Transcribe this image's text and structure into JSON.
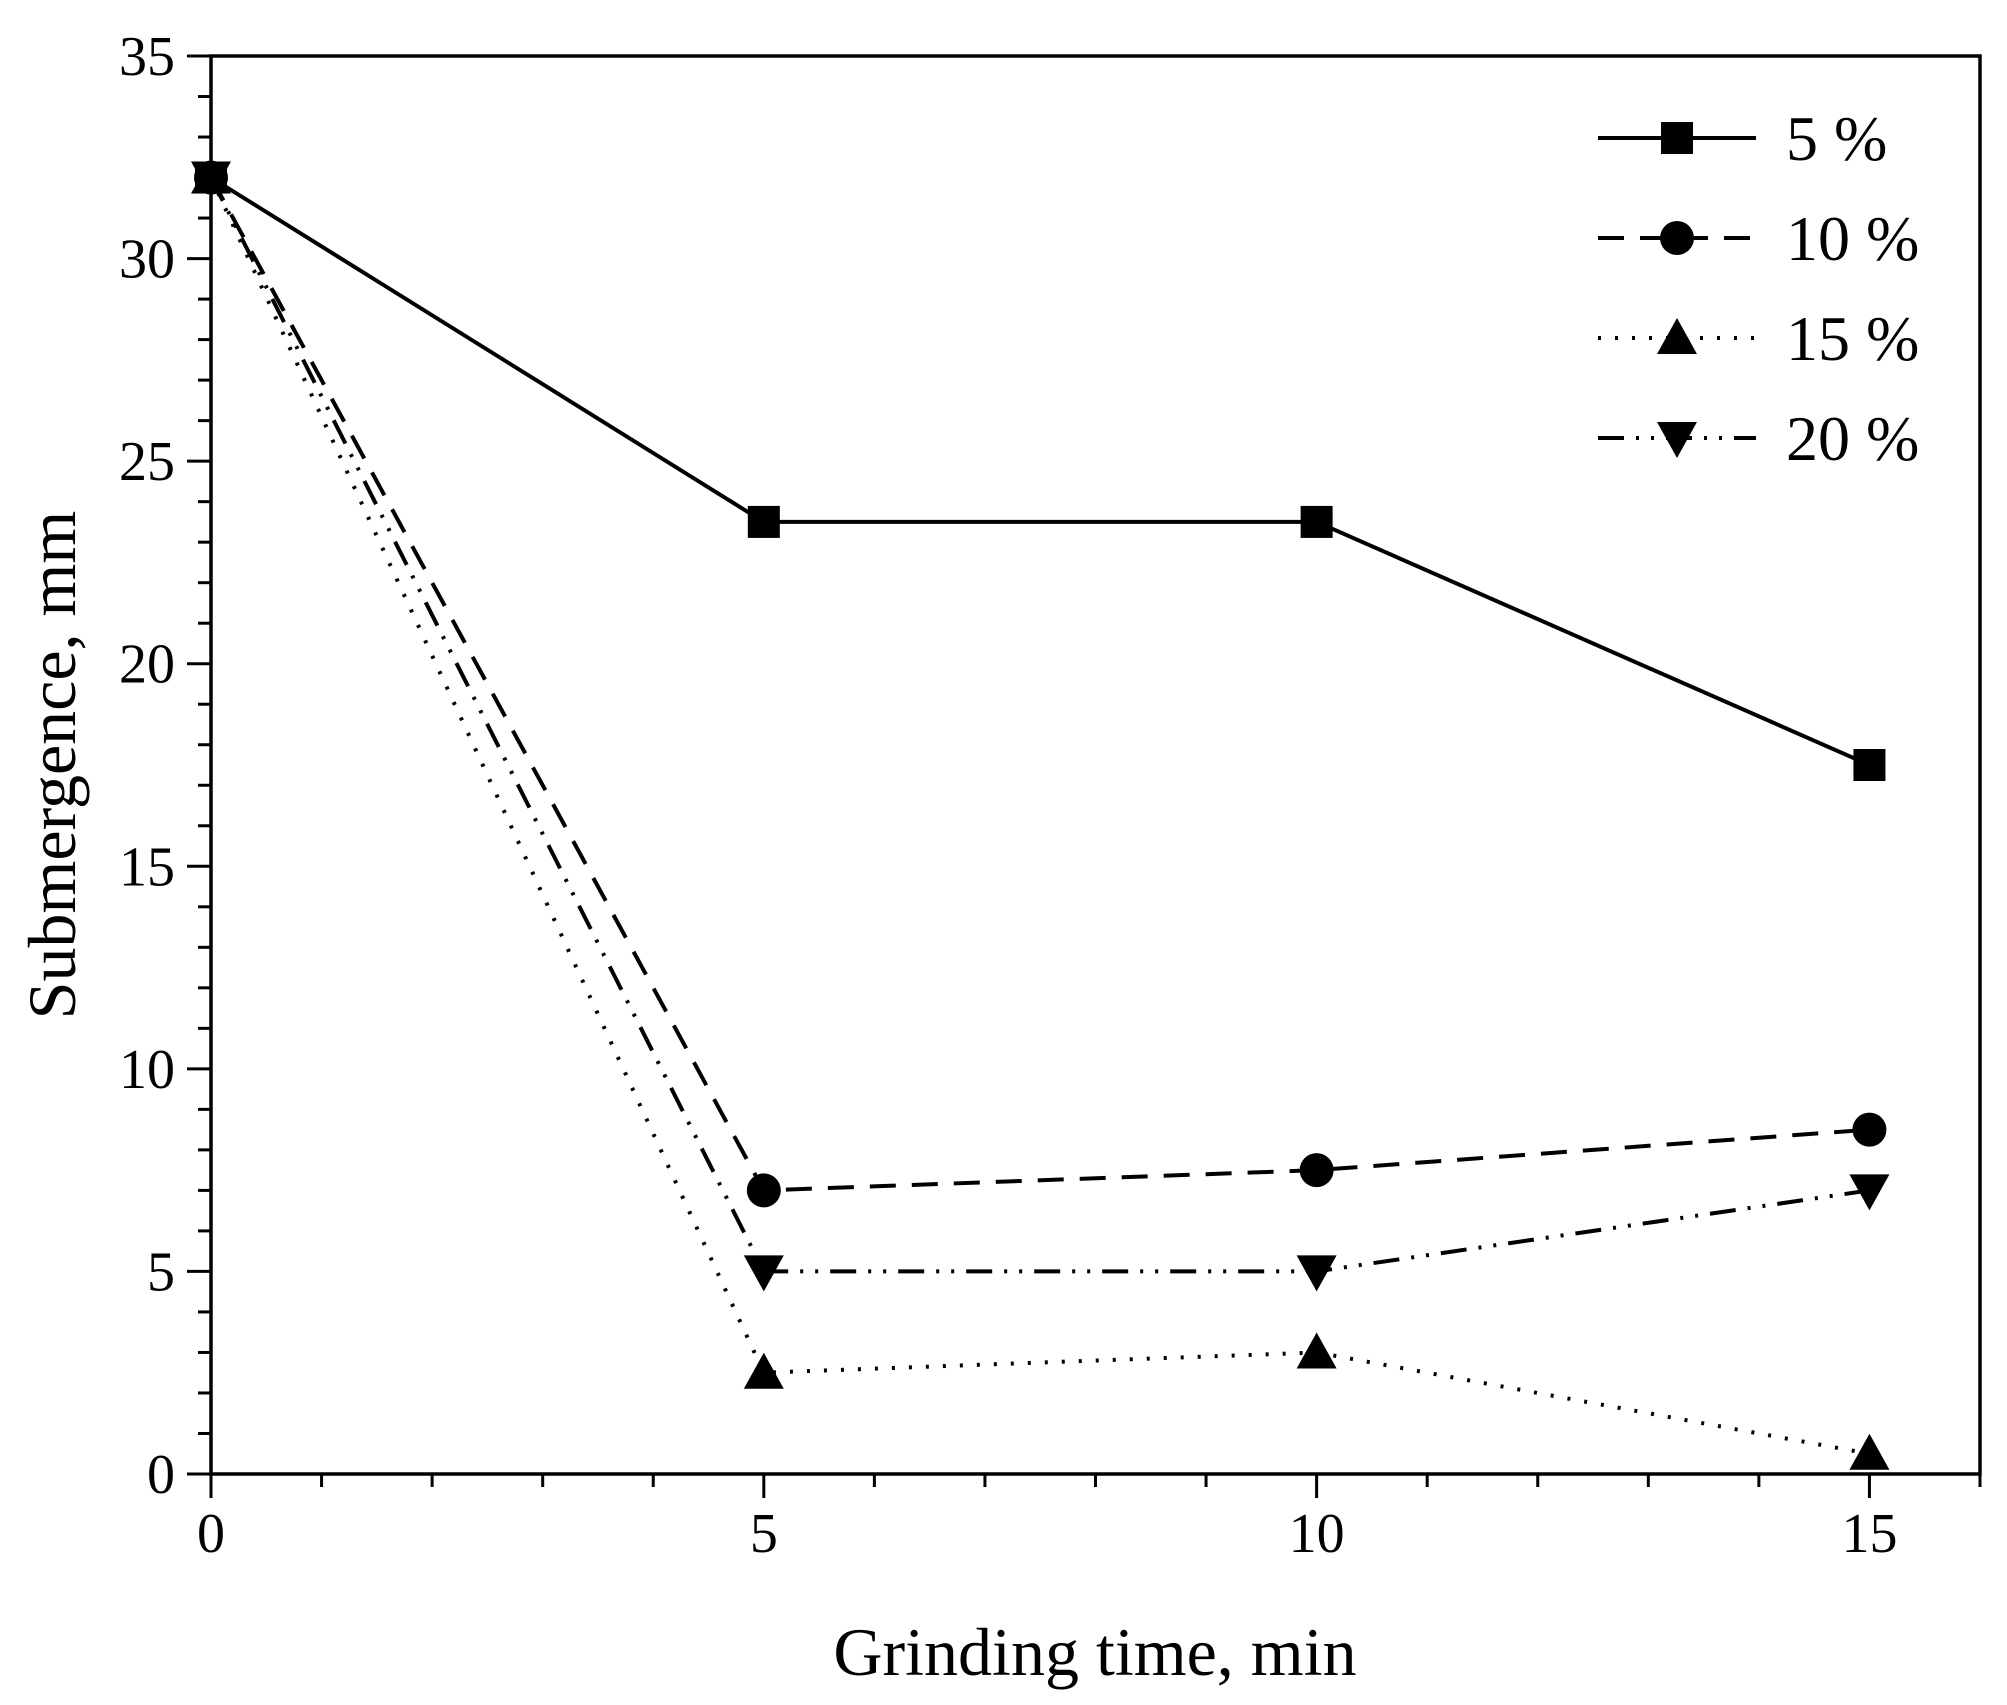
{
  "chart_data": {
    "type": "line",
    "title": "",
    "xlabel": "Grinding time, min",
    "ylabel": "Submergence, mm",
    "xlim": [
      0,
      16
    ],
    "ylim": [
      0,
      35
    ],
    "xticks": [
      0,
      5,
      10,
      15
    ],
    "yticks": [
      0,
      5,
      10,
      15,
      20,
      25,
      30,
      35
    ],
    "x": [
      0,
      5,
      10,
      15
    ],
    "grid": false,
    "legend_position": "top-right",
    "series": [
      {
        "name": "5 %",
        "values": [
          32,
          23.5,
          23.5,
          17.5
        ],
        "marker": "square",
        "linestyle": "solid"
      },
      {
        "name": "10 %",
        "values": [
          32,
          7,
          7.5,
          8.5
        ],
        "marker": "circle",
        "linestyle": "dashed"
      },
      {
        "name": "15 %",
        "values": [
          32,
          2.5,
          3,
          0.5
        ],
        "marker": "triangle-up",
        "linestyle": "dotted"
      },
      {
        "name": "20 %",
        "values": [
          32,
          5,
          5,
          7
        ],
        "marker": "triangle-down",
        "linestyle": "dash-dot-dot"
      }
    ]
  }
}
